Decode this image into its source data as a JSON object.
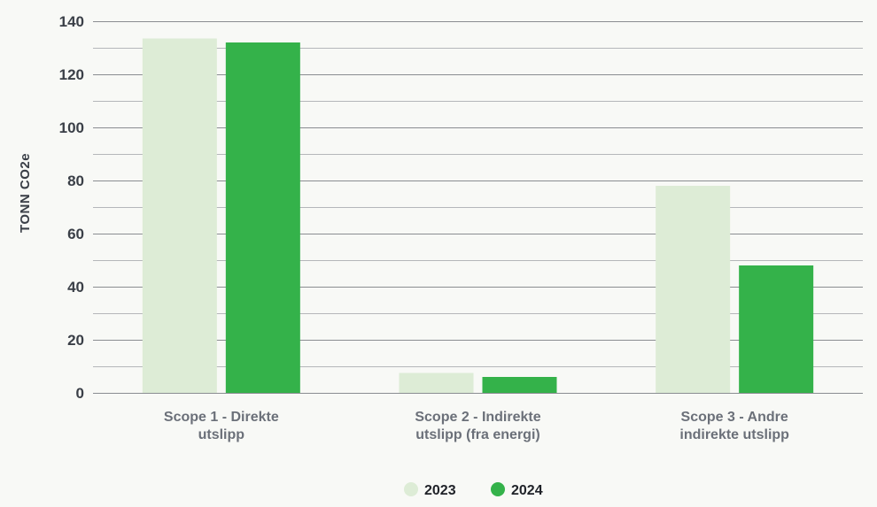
{
  "chart_data": {
    "type": "bar",
    "categories": [
      [
        "Scope 1 - Direkte",
        "utslipp"
      ],
      [
        "Scope 2 - Indirekte",
        "utslipp (fra energi)"
      ],
      [
        "Scope 3 - Andre",
        "indirekte utslipp"
      ]
    ],
    "series": [
      {
        "name": "2023",
        "values": [
          133.5,
          7.5,
          78
        ],
        "color": "#ddecd6"
      },
      {
        "name": "2024",
        "values": [
          132,
          6,
          48
        ],
        "color": "#34b24a"
      }
    ],
    "ylabel": "TONN CO2e",
    "ylim": [
      0,
      140
    ],
    "yticks": [
      0,
      20,
      40,
      60,
      80,
      100,
      120,
      140
    ],
    "grid": true,
    "legend_position": "bottom-center"
  }
}
